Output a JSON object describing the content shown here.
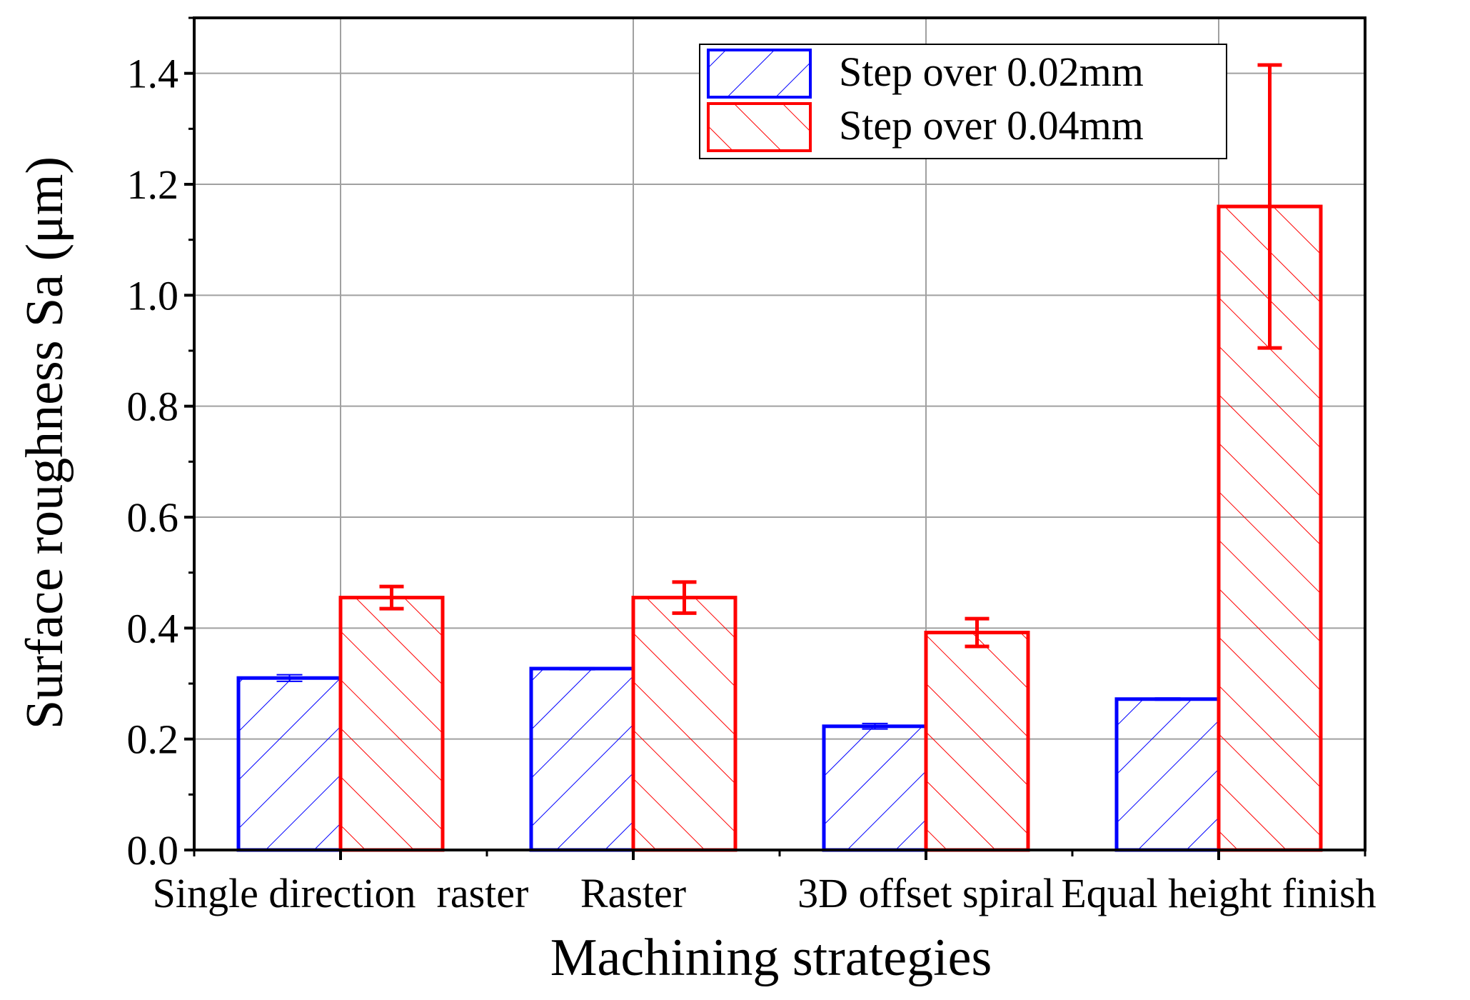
{
  "chart_data": {
    "type": "bar",
    "title": "",
    "xlabel": "Machining strategies",
    "ylabel": "Surface roughness Sa (μm)",
    "ylim": [
      0,
      1.5
    ],
    "yticks": [
      "0.0",
      "0.2",
      "0.4",
      "0.6",
      "0.8",
      "1.0",
      "1.2",
      "1.4"
    ],
    "ytick_values": [
      0,
      0.2,
      0.4,
      0.6,
      0.8,
      1.0,
      1.2,
      1.4
    ],
    "categories": [
      "Single direction  raster",
      "Raster",
      "3D offset spiral",
      "Equal height finish"
    ],
    "grid": true,
    "legend_position": "top-right",
    "series": [
      {
        "name": "Step over 0.02mm",
        "color": "#0000ff",
        "hatch": "forward-diagonal",
        "values": [
          0.31,
          0.327,
          0.223,
          0.272
        ],
        "errors": [
          0.006,
          0.002,
          0.005,
          0.002
        ]
      },
      {
        "name": "Step over 0.04mm",
        "color": "#ff0000",
        "hatch": "backward-diagonal",
        "values": [
          0.455,
          0.455,
          0.392,
          1.16
        ],
        "errors": [
          0.02,
          0.028,
          0.025,
          0.255
        ]
      }
    ]
  }
}
